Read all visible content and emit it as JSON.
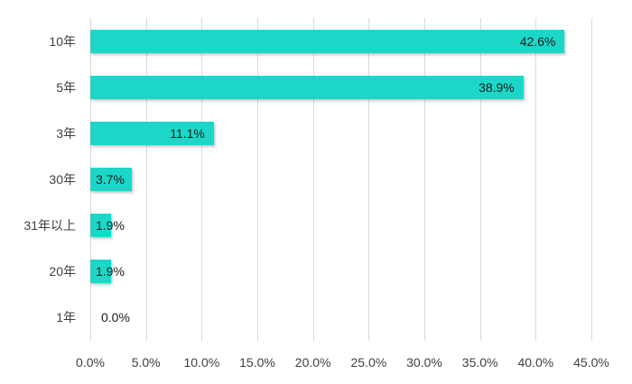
{
  "chart_data": {
    "type": "bar",
    "orientation": "horizontal",
    "title": "",
    "xlabel": "",
    "ylabel": "",
    "legend": "none",
    "grid": "vertical-only",
    "categories": [
      "10年",
      "5年",
      "3年",
      "30年",
      "31年以上",
      "20年",
      "1年"
    ],
    "values": [
      42.6,
      38.9,
      11.1,
      3.7,
      1.9,
      1.9,
      0.0
    ],
    "data_labels": [
      "42.6%",
      "38.9%",
      "11.1%",
      "3.7%",
      "1.9%",
      "1.9%",
      "0.0%"
    ],
    "x_ticks": [
      {
        "value": 0,
        "label": "0.0%"
      },
      {
        "value": 5,
        "label": "5.0%"
      },
      {
        "value": 10,
        "label": "10.0%"
      },
      {
        "value": 15,
        "label": "15.0%"
      },
      {
        "value": 20,
        "label": "20.0%"
      },
      {
        "value": 25,
        "label": "25.0%"
      },
      {
        "value": 30,
        "label": "30.0%"
      },
      {
        "value": 35,
        "label": "35.0%"
      },
      {
        "value": 40,
        "label": "40.0%"
      },
      {
        "value": 45,
        "label": "45.0%"
      }
    ],
    "xlim": [
      0,
      45
    ],
    "colors": {
      "bar": "#1cd7c8",
      "gridline": "#d9d9d9",
      "axis_text": "#404040",
      "data_label_text": "#1a1a1a",
      "background": "#ffffff"
    }
  }
}
